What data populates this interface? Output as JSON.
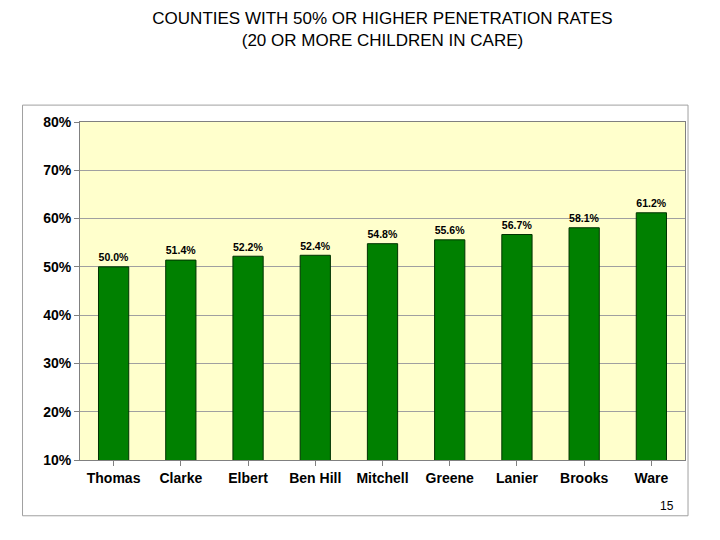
{
  "chart_data": {
    "type": "bar",
    "title": "COUNTIES WITH 50% OR HIGHER PENETRATION RATES",
    "subtitle": "(20 OR MORE CHILDREN IN CARE)",
    "categories": [
      "Thomas",
      "Clarke",
      "Elbert",
      "Ben Hill",
      "Mitchell",
      "Greene",
      "Lanier",
      "Brooks",
      "Ware"
    ],
    "values": [
      50.0,
      51.4,
      52.2,
      52.4,
      54.8,
      55.6,
      56.7,
      58.1,
      61.2
    ],
    "value_labels": [
      "50.0%",
      "51.4%",
      "52.2%",
      "52.4%",
      "54.8%",
      "55.6%",
      "56.7%",
      "58.1%",
      "61.2%"
    ],
    "data_labels": true,
    "color": "#008000",
    "ylim": [
      10,
      80
    ],
    "yticks": [
      {
        "value": 10,
        "label": "10%"
      },
      {
        "value": 20,
        "label": "20%"
      },
      {
        "value": 30,
        "label": "30%"
      },
      {
        "value": 40,
        "label": "40%"
      },
      {
        "value": 50,
        "label": "50%"
      },
      {
        "value": 60,
        "label": "60%"
      },
      {
        "value": 70,
        "label": "70%"
      },
      {
        "value": 80,
        "label": "80%"
      }
    ],
    "grid": true,
    "annotations": [
      {
        "text": "15"
      }
    ]
  }
}
